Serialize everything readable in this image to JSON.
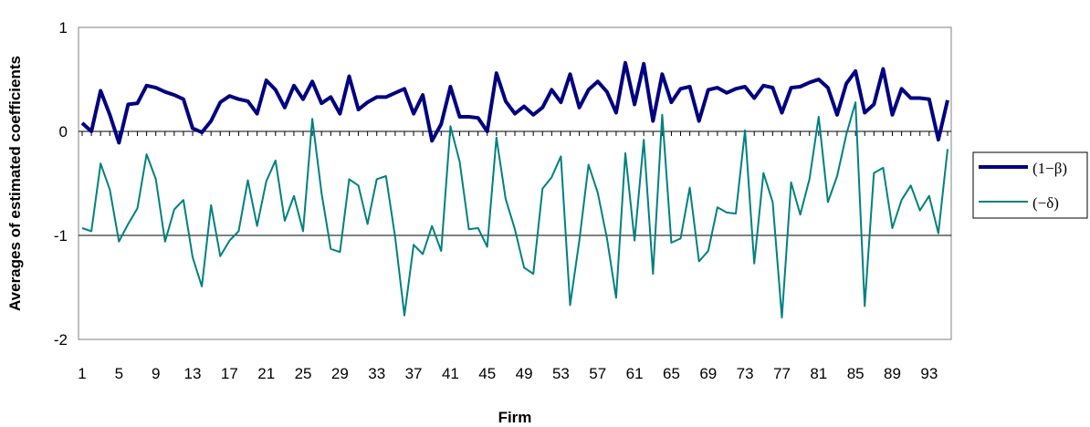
{
  "chart_data": {
    "type": "line",
    "xlabel": "Firm",
    "ylabel": "Averages of estimated coefficients",
    "ylim": [
      -2,
      1
    ],
    "yticks": [
      "1",
      "0",
      "-1",
      "-2"
    ],
    "x": [
      1,
      2,
      3,
      4,
      5,
      6,
      7,
      8,
      9,
      10,
      11,
      12,
      13,
      14,
      15,
      16,
      17,
      18,
      19,
      20,
      21,
      22,
      23,
      24,
      25,
      26,
      27,
      28,
      29,
      30,
      31,
      32,
      33,
      34,
      35,
      36,
      37,
      38,
      39,
      40,
      41,
      42,
      43,
      44,
      45,
      46,
      47,
      48,
      49,
      50,
      51,
      52,
      53,
      54,
      55,
      56,
      57,
      58,
      59,
      60,
      61,
      62,
      63,
      64,
      65,
      66,
      67,
      68,
      69,
      70,
      71,
      72,
      73,
      74,
      75,
      76,
      77,
      78,
      79,
      80,
      81,
      82,
      83,
      84,
      85,
      86,
      87,
      88,
      89,
      90,
      91,
      92,
      93,
      94,
      95
    ],
    "x_tick_labels": [
      "1",
      "5",
      "9",
      "13",
      "17",
      "21",
      "25",
      "29",
      "33",
      "37",
      "41",
      "45",
      "49",
      "53",
      "57",
      "61",
      "65",
      "69",
      "73",
      "77",
      "81",
      "85",
      "89",
      "93"
    ],
    "series": [
      {
        "name": "(1−β)",
        "color": "#000080",
        "values": [
          0.08,
          0.0,
          0.39,
          0.16,
          -0.11,
          0.26,
          0.27,
          0.44,
          0.42,
          0.38,
          0.35,
          0.31,
          0.03,
          -0.01,
          0.1,
          0.28,
          0.34,
          0.31,
          0.29,
          0.17,
          0.49,
          0.4,
          0.23,
          0.44,
          0.31,
          0.48,
          0.27,
          0.33,
          0.17,
          0.53,
          0.21,
          0.28,
          0.33,
          0.33,
          0.37,
          0.41,
          0.17,
          0.35,
          -0.09,
          0.07,
          0.43,
          0.14,
          0.14,
          0.13,
          0.0,
          0.56,
          0.29,
          0.17,
          0.24,
          0.16,
          0.23,
          0.4,
          0.28,
          0.55,
          0.23,
          0.4,
          0.48,
          0.38,
          0.18,
          0.66,
          0.26,
          0.65,
          0.1,
          0.55,
          0.28,
          0.41,
          0.43,
          0.1,
          0.4,
          0.42,
          0.37,
          0.41,
          0.43,
          0.32,
          0.44,
          0.42,
          0.18,
          0.42,
          0.43,
          0.47,
          0.5,
          0.42,
          0.16,
          0.46,
          0.58,
          0.18,
          0.26,
          0.6,
          0.16,
          0.41,
          0.32,
          0.32,
          0.31,
          -0.08,
          0.3
        ]
      },
      {
        "name": "(−δ)",
        "color": "#008080",
        "values": [
          -0.93,
          -0.96,
          -0.31,
          -0.56,
          -1.06,
          -0.89,
          -0.74,
          -0.22,
          -0.46,
          -1.06,
          -0.75,
          -0.66,
          -1.21,
          -1.49,
          -0.71,
          -1.2,
          -1.05,
          -0.96,
          -0.47,
          -0.91,
          -0.48,
          -0.28,
          -0.86,
          -0.62,
          -0.96,
          0.12,
          -0.59,
          -1.13,
          -1.16,
          -0.46,
          -0.52,
          -0.89,
          -0.46,
          -0.43,
          -1.02,
          -1.77,
          -1.09,
          -1.18,
          -0.91,
          -1.15,
          0.05,
          -0.29,
          -0.94,
          -0.93,
          -1.11,
          -0.06,
          -0.65,
          -0.94,
          -1.31,
          -1.37,
          -0.55,
          -0.44,
          -0.24,
          -1.67,
          -1.05,
          -0.32,
          -0.59,
          -1.03,
          -1.6,
          -0.21,
          -1.05,
          -0.08,
          -1.37,
          0.16,
          -1.07,
          -1.03,
          -0.54,
          -1.25,
          -1.15,
          -0.73,
          -0.78,
          -0.79,
          0.01,
          -1.27,
          -0.4,
          -0.68,
          -1.79,
          -0.49,
          -0.8,
          -0.46,
          0.14,
          -0.68,
          -0.43,
          -0.03,
          0.28,
          -1.68,
          -0.4,
          -0.35,
          -0.93,
          -0.66,
          -0.52,
          -0.76,
          -0.62,
          -0.98,
          -0.17
        ]
      }
    ],
    "grid": {
      "horizontal": true,
      "vertical": false
    },
    "legend_position": "right"
  }
}
